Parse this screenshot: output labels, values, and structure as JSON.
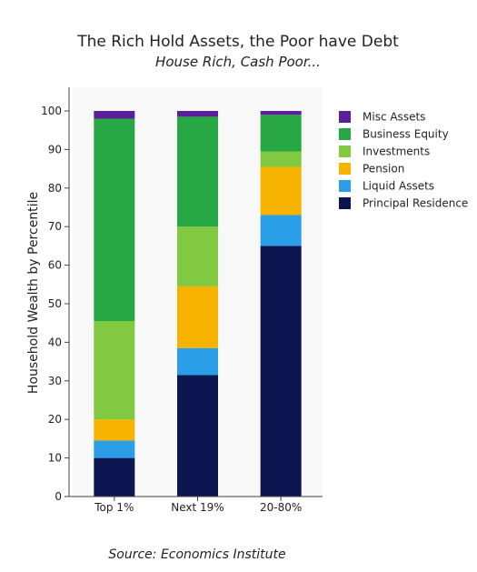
{
  "chart_data": {
    "type": "bar",
    "stacked": true,
    "title": "The Rich Hold Assets, the Poor have Debt",
    "subtitle": "House Rich, Cash Poor...",
    "xlabel": "",
    "ylabel": "Household Wealth by Percentile",
    "ylim": [
      0,
      100
    ],
    "yticks": [
      0,
      10,
      20,
      30,
      40,
      50,
      60,
      70,
      80,
      90,
      100
    ],
    "categories": [
      "Top 1%",
      "Next 19%",
      "20-80%"
    ],
    "series": [
      {
        "name": "Principal Residence",
        "color": "#0b1650",
        "values": [
          10,
          31.5,
          65
        ]
      },
      {
        "name": "Liquid Assets",
        "color": "#2a9fe8",
        "values": [
          4.5,
          7,
          8
        ]
      },
      {
        "name": "Pension",
        "color": "#f6b400",
        "values": [
          5.5,
          16,
          12.5
        ]
      },
      {
        "name": "Investments",
        "color": "#80c940",
        "values": [
          25.5,
          15.5,
          4
        ]
      },
      {
        "name": "Business Equity",
        "color": "#28a745",
        "values": [
          52.5,
          28.5,
          9.5
        ]
      },
      {
        "name": "Misc Assets",
        "color": "#5b1f99",
        "values": [
          2,
          1.5,
          1
        ]
      }
    ],
    "grid": false,
    "legend_position": "right",
    "source": "Source: Economics Institute"
  }
}
